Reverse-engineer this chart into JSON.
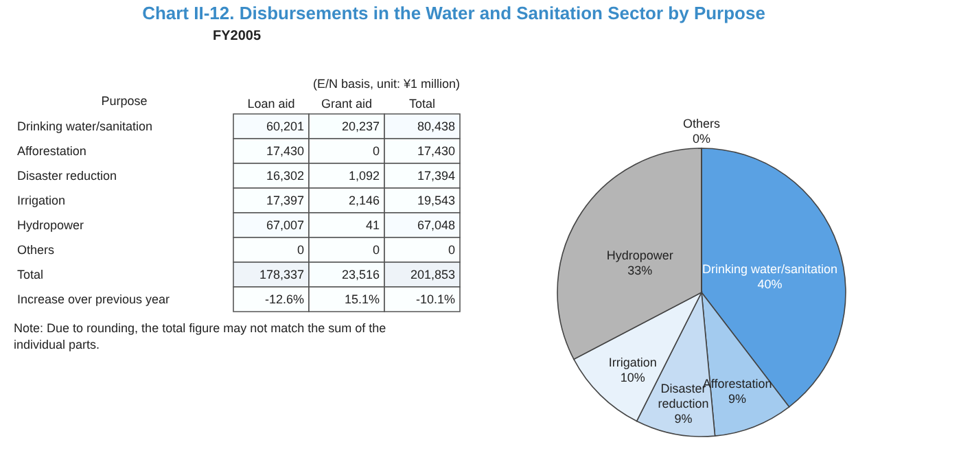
{
  "chart_data": [
    {
      "type": "heatmap",
      "title": "Chart II-12. Disbursements in the Water and Sanitation Sector by Purpose",
      "subtitle": "FY2005",
      "ylabel": "Purpose",
      "annotations": [
        "(E/N basis, unit: ¥1 million)",
        "Note: Due to rounding, the total figure may not match the sum of the individual parts."
      ],
      "categories": [
        "Loan aid",
        "Grant aid",
        "Total"
      ],
      "y_categories": [
        "Drinking water/sanitation",
        "Afforestation",
        "Disaster reduction",
        "Irrigation",
        "Hydropower",
        "Others",
        "Total",
        "Increase over previous year"
      ],
      "cells": [
        [
          60201,
          20237,
          80438
        ],
        [
          17430,
          0,
          17430
        ],
        [
          16302,
          1092,
          17394
        ],
        [
          17397,
          2146,
          19543
        ],
        [
          67007,
          41,
          67048
        ],
        [
          0,
          0,
          0
        ],
        [
          178337,
          23516,
          201853
        ],
        [
          -12.6,
          15.1,
          -10.1
        ]
      ],
      "cell_labels": [
        [
          "60,201",
          "20,237",
          "80,438"
        ],
        [
          "17,430",
          "0",
          "17,430"
        ],
        [
          "16,302",
          "1,092",
          "17,394"
        ],
        [
          "17,397",
          "2,146",
          "19,543"
        ],
        [
          "67,007",
          "41",
          "67,048"
        ],
        [
          "0",
          "0",
          "0"
        ],
        [
          "178,337",
          "23,516",
          "201,853"
        ],
        [
          "-12.6%",
          "15.1%",
          "-10.1%"
        ]
      ]
    },
    {
      "type": "pie",
      "categories": [
        "Drinking water/sanitation",
        "Afforestation",
        "Disaster reduction",
        "Irrigation",
        "Hydropower",
        "Others"
      ],
      "values": [
        40,
        9,
        9,
        10,
        33,
        0
      ],
      "value_labels": [
        "40%",
        "9%",
        "9%",
        "10%",
        "33%",
        "0%"
      ],
      "colors": [
        "#5aa1e3",
        "#a3cbef",
        "#c5dcf3",
        "#e8f2fb",
        "#b5b5b5",
        "#ffffff"
      ]
    }
  ]
}
